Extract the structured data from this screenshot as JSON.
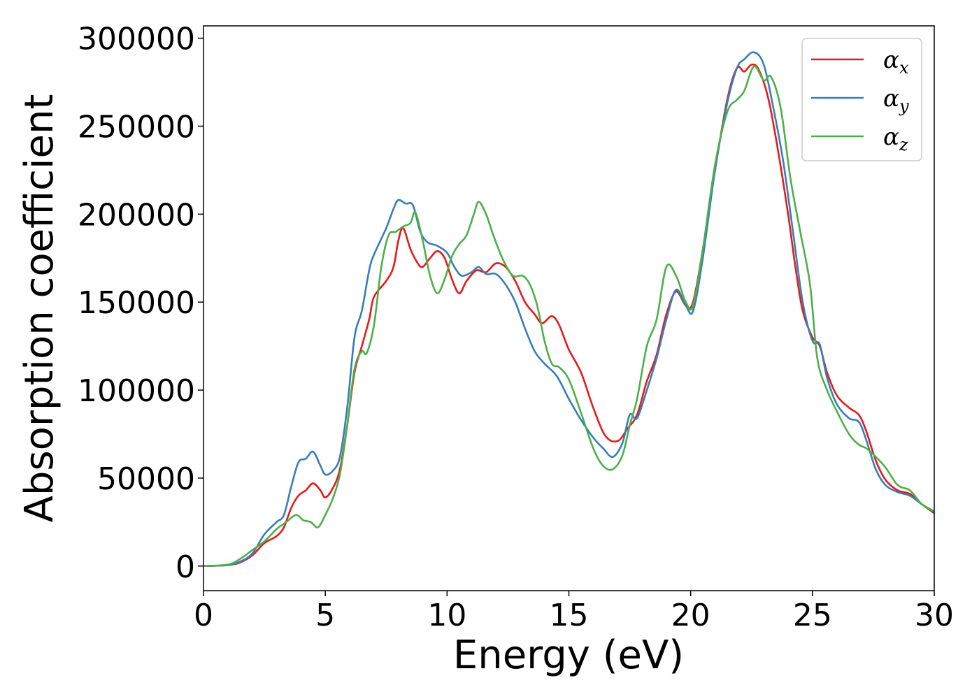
{
  "chart_data": {
    "type": "line",
    "xlabel": "Energy (eV)",
    "ylabel": "Absorption coefficient",
    "xlim": [
      0,
      30
    ],
    "ylim": [
      -14000,
      307000
    ],
    "xticks": [
      0,
      5,
      10,
      15,
      20,
      25,
      30
    ],
    "yticks": [
      0,
      50000,
      100000,
      150000,
      200000,
      250000,
      300000
    ],
    "legend_position": "top-right",
    "grid": false,
    "series": [
      {
        "name": "α_x",
        "symbol": "α",
        "subscript": "x",
        "color": "#e41a1c",
        "points": [
          [
            0,
            0
          ],
          [
            1,
            500
          ],
          [
            1.5,
            2000
          ],
          [
            2,
            6000
          ],
          [
            2.5,
            13000
          ],
          [
            3,
            17000
          ],
          [
            3.3,
            22000
          ],
          [
            3.6,
            33000
          ],
          [
            3.9,
            40000
          ],
          [
            4.2,
            43000
          ],
          [
            4.5,
            47000
          ],
          [
            4.8,
            43000
          ],
          [
            5,
            39000
          ],
          [
            5.3,
            44000
          ],
          [
            5.6,
            55000
          ],
          [
            5.9,
            80000
          ],
          [
            6.2,
            110000
          ],
          [
            6.5,
            125000
          ],
          [
            6.8,
            140000
          ],
          [
            7,
            153000
          ],
          [
            7.5,
            162000
          ],
          [
            7.8,
            170000
          ],
          [
            8,
            185000
          ],
          [
            8.2,
            192000
          ],
          [
            8.5,
            180000
          ],
          [
            8.8,
            172000
          ],
          [
            9,
            170000
          ],
          [
            9.3,
            175000
          ],
          [
            9.6,
            179000
          ],
          [
            9.9,
            175000
          ],
          [
            10.2,
            163000
          ],
          [
            10.5,
            155000
          ],
          [
            10.8,
            162000
          ],
          [
            11.2,
            168000
          ],
          [
            11.6,
            167000
          ],
          [
            12,
            172000
          ],
          [
            12.4,
            170000
          ],
          [
            12.8,
            162000
          ],
          [
            13.2,
            150000
          ],
          [
            13.6,
            143000
          ],
          [
            13.9,
            138000
          ],
          [
            14.3,
            142000
          ],
          [
            14.6,
            137000
          ],
          [
            15,
            123000
          ],
          [
            15.5,
            110000
          ],
          [
            16,
            90000
          ],
          [
            16.5,
            74000
          ],
          [
            17,
            71000
          ],
          [
            17.4,
            78000
          ],
          [
            17.8,
            86000
          ],
          [
            18.2,
            105000
          ],
          [
            18.6,
            120000
          ],
          [
            19,
            143000
          ],
          [
            19.4,
            156000
          ],
          [
            19.8,
            148000
          ],
          [
            20.1,
            150000
          ],
          [
            20.5,
            180000
          ],
          [
            21,
            225000
          ],
          [
            21.5,
            265000
          ],
          [
            21.9,
            283000
          ],
          [
            22.2,
            281000
          ],
          [
            22.5,
            285000
          ],
          [
            22.8,
            282000
          ],
          [
            23.2,
            265000
          ],
          [
            23.6,
            235000
          ],
          [
            24,
            200000
          ],
          [
            24.3,
            170000
          ],
          [
            24.6,
            145000
          ],
          [
            25,
            130000
          ],
          [
            25.3,
            125000
          ],
          [
            25.6,
            110000
          ],
          [
            26,
            97000
          ],
          [
            26.5,
            90000
          ],
          [
            26.9,
            86000
          ],
          [
            27.2,
            77000
          ],
          [
            27.6,
            60000
          ],
          [
            28,
            49000
          ],
          [
            28.5,
            43000
          ],
          [
            29,
            41000
          ],
          [
            29.5,
            35000
          ],
          [
            30,
            30000
          ]
        ]
      },
      {
        "name": "α_y",
        "symbol": "α",
        "subscript": "y",
        "color": "#377eb8",
        "points": [
          [
            0,
            0
          ],
          [
            1,
            500
          ],
          [
            1.5,
            2500
          ],
          [
            2,
            7000
          ],
          [
            2.5,
            18000
          ],
          [
            3,
            25000
          ],
          [
            3.3,
            29000
          ],
          [
            3.6,
            45000
          ],
          [
            3.9,
            59000
          ],
          [
            4.2,
            61000
          ],
          [
            4.5,
            65000
          ],
          [
            4.8,
            57000
          ],
          [
            5,
            52000
          ],
          [
            5.3,
            54000
          ],
          [
            5.6,
            62000
          ],
          [
            5.9,
            90000
          ],
          [
            6.2,
            130000
          ],
          [
            6.5,
            145000
          ],
          [
            6.8,
            168000
          ],
          [
            7,
            177000
          ],
          [
            7.5,
            192000
          ],
          [
            7.8,
            203000
          ],
          [
            8,
            208000
          ],
          [
            8.3,
            206000
          ],
          [
            8.6,
            205000
          ],
          [
            8.9,
            190000
          ],
          [
            9.2,
            184000
          ],
          [
            9.6,
            182000
          ],
          [
            10,
            178000
          ],
          [
            10.3,
            170000
          ],
          [
            10.6,
            165000
          ],
          [
            11,
            167000
          ],
          [
            11.3,
            170000
          ],
          [
            11.6,
            166000
          ],
          [
            12,
            166000
          ],
          [
            12.4,
            160000
          ],
          [
            12.8,
            150000
          ],
          [
            13.2,
            135000
          ],
          [
            13.6,
            122000
          ],
          [
            14,
            115000
          ],
          [
            14.5,
            108000
          ],
          [
            15,
            95000
          ],
          [
            15.5,
            83000
          ],
          [
            16,
            73000
          ],
          [
            16.4,
            67000
          ],
          [
            16.8,
            62000
          ],
          [
            17.2,
            70000
          ],
          [
            17.5,
            86000
          ],
          [
            17.8,
            84000
          ],
          [
            18.2,
            100000
          ],
          [
            18.6,
            118000
          ],
          [
            19,
            140000
          ],
          [
            19.4,
            157000
          ],
          [
            19.8,
            148000
          ],
          [
            20.1,
            145000
          ],
          [
            20.5,
            175000
          ],
          [
            21,
            225000
          ],
          [
            21.5,
            263000
          ],
          [
            21.9,
            283000
          ],
          [
            22.2,
            288000
          ],
          [
            22.6,
            292000
          ],
          [
            23,
            285000
          ],
          [
            23.4,
            260000
          ],
          [
            23.8,
            230000
          ],
          [
            24.2,
            190000
          ],
          [
            24.6,
            150000
          ],
          [
            25,
            128000
          ],
          [
            25.3,
            126000
          ],
          [
            25.6,
            107000
          ],
          [
            26,
            92000
          ],
          [
            26.5,
            84000
          ],
          [
            26.9,
            82000
          ],
          [
            27.2,
            72000
          ],
          [
            27.6,
            55000
          ],
          [
            28,
            46000
          ],
          [
            28.5,
            42000
          ],
          [
            29,
            40000
          ],
          [
            29.5,
            35000
          ],
          [
            30,
            31000
          ]
        ]
      },
      {
        "name": "α_z",
        "symbol": "α",
        "subscript": "z",
        "color": "#4daf4a",
        "points": [
          [
            0,
            0
          ],
          [
            1,
            800
          ],
          [
            1.5,
            4000
          ],
          [
            2,
            9000
          ],
          [
            2.5,
            14000
          ],
          [
            3,
            21000
          ],
          [
            3.4,
            25000
          ],
          [
            3.8,
            29000
          ],
          [
            4.1,
            26000
          ],
          [
            4.4,
            25000
          ],
          [
            4.7,
            22000
          ],
          [
            5,
            29000
          ],
          [
            5.3,
            38000
          ],
          [
            5.6,
            52000
          ],
          [
            5.9,
            80000
          ],
          [
            6.2,
            112000
          ],
          [
            6.5,
            122000
          ],
          [
            6.7,
            121000
          ],
          [
            7,
            137000
          ],
          [
            7.3,
            170000
          ],
          [
            7.6,
            188000
          ],
          [
            7.9,
            190000
          ],
          [
            8.2,
            193000
          ],
          [
            8.5,
            195000
          ],
          [
            8.7,
            201000
          ],
          [
            9,
            185000
          ],
          [
            9.3,
            165000
          ],
          [
            9.6,
            155000
          ],
          [
            9.9,
            163000
          ],
          [
            10.2,
            176000
          ],
          [
            10.5,
            183000
          ],
          [
            10.8,
            188000
          ],
          [
            11.1,
            200000
          ],
          [
            11.3,
            207000
          ],
          [
            11.6,
            200000
          ],
          [
            11.9,
            188000
          ],
          [
            12.3,
            174000
          ],
          [
            12.7,
            165000
          ],
          [
            13.1,
            165000
          ],
          [
            13.4,
            160000
          ],
          [
            13.7,
            148000
          ],
          [
            14,
            128000
          ],
          [
            14.3,
            115000
          ],
          [
            14.6,
            113000
          ],
          [
            15,
            106000
          ],
          [
            15.5,
            87000
          ],
          [
            16,
            67000
          ],
          [
            16.4,
            57000
          ],
          [
            16.8,
            55000
          ],
          [
            17.2,
            63000
          ],
          [
            17.5,
            80000
          ],
          [
            17.8,
            95000
          ],
          [
            18.2,
            125000
          ],
          [
            18.6,
            140000
          ],
          [
            19,
            170000
          ],
          [
            19.4,
            165000
          ],
          [
            19.8,
            150000
          ],
          [
            20.1,
            148000
          ],
          [
            20.5,
            180000
          ],
          [
            21,
            228000
          ],
          [
            21.5,
            258000
          ],
          [
            21.9,
            265000
          ],
          [
            22.2,
            270000
          ],
          [
            22.6,
            284000
          ],
          [
            23,
            276000
          ],
          [
            23.3,
            278000
          ],
          [
            23.7,
            260000
          ],
          [
            24.1,
            220000
          ],
          [
            24.5,
            190000
          ],
          [
            24.9,
            160000
          ],
          [
            25.2,
            118000
          ],
          [
            25.6,
            100000
          ],
          [
            26,
            88000
          ],
          [
            26.5,
            75000
          ],
          [
            26.9,
            69000
          ],
          [
            27.2,
            67000
          ],
          [
            27.6,
            62000
          ],
          [
            28,
            56000
          ],
          [
            28.5,
            46000
          ],
          [
            29,
            43000
          ],
          [
            29.5,
            35000
          ],
          [
            30,
            31000
          ]
        ]
      }
    ]
  }
}
